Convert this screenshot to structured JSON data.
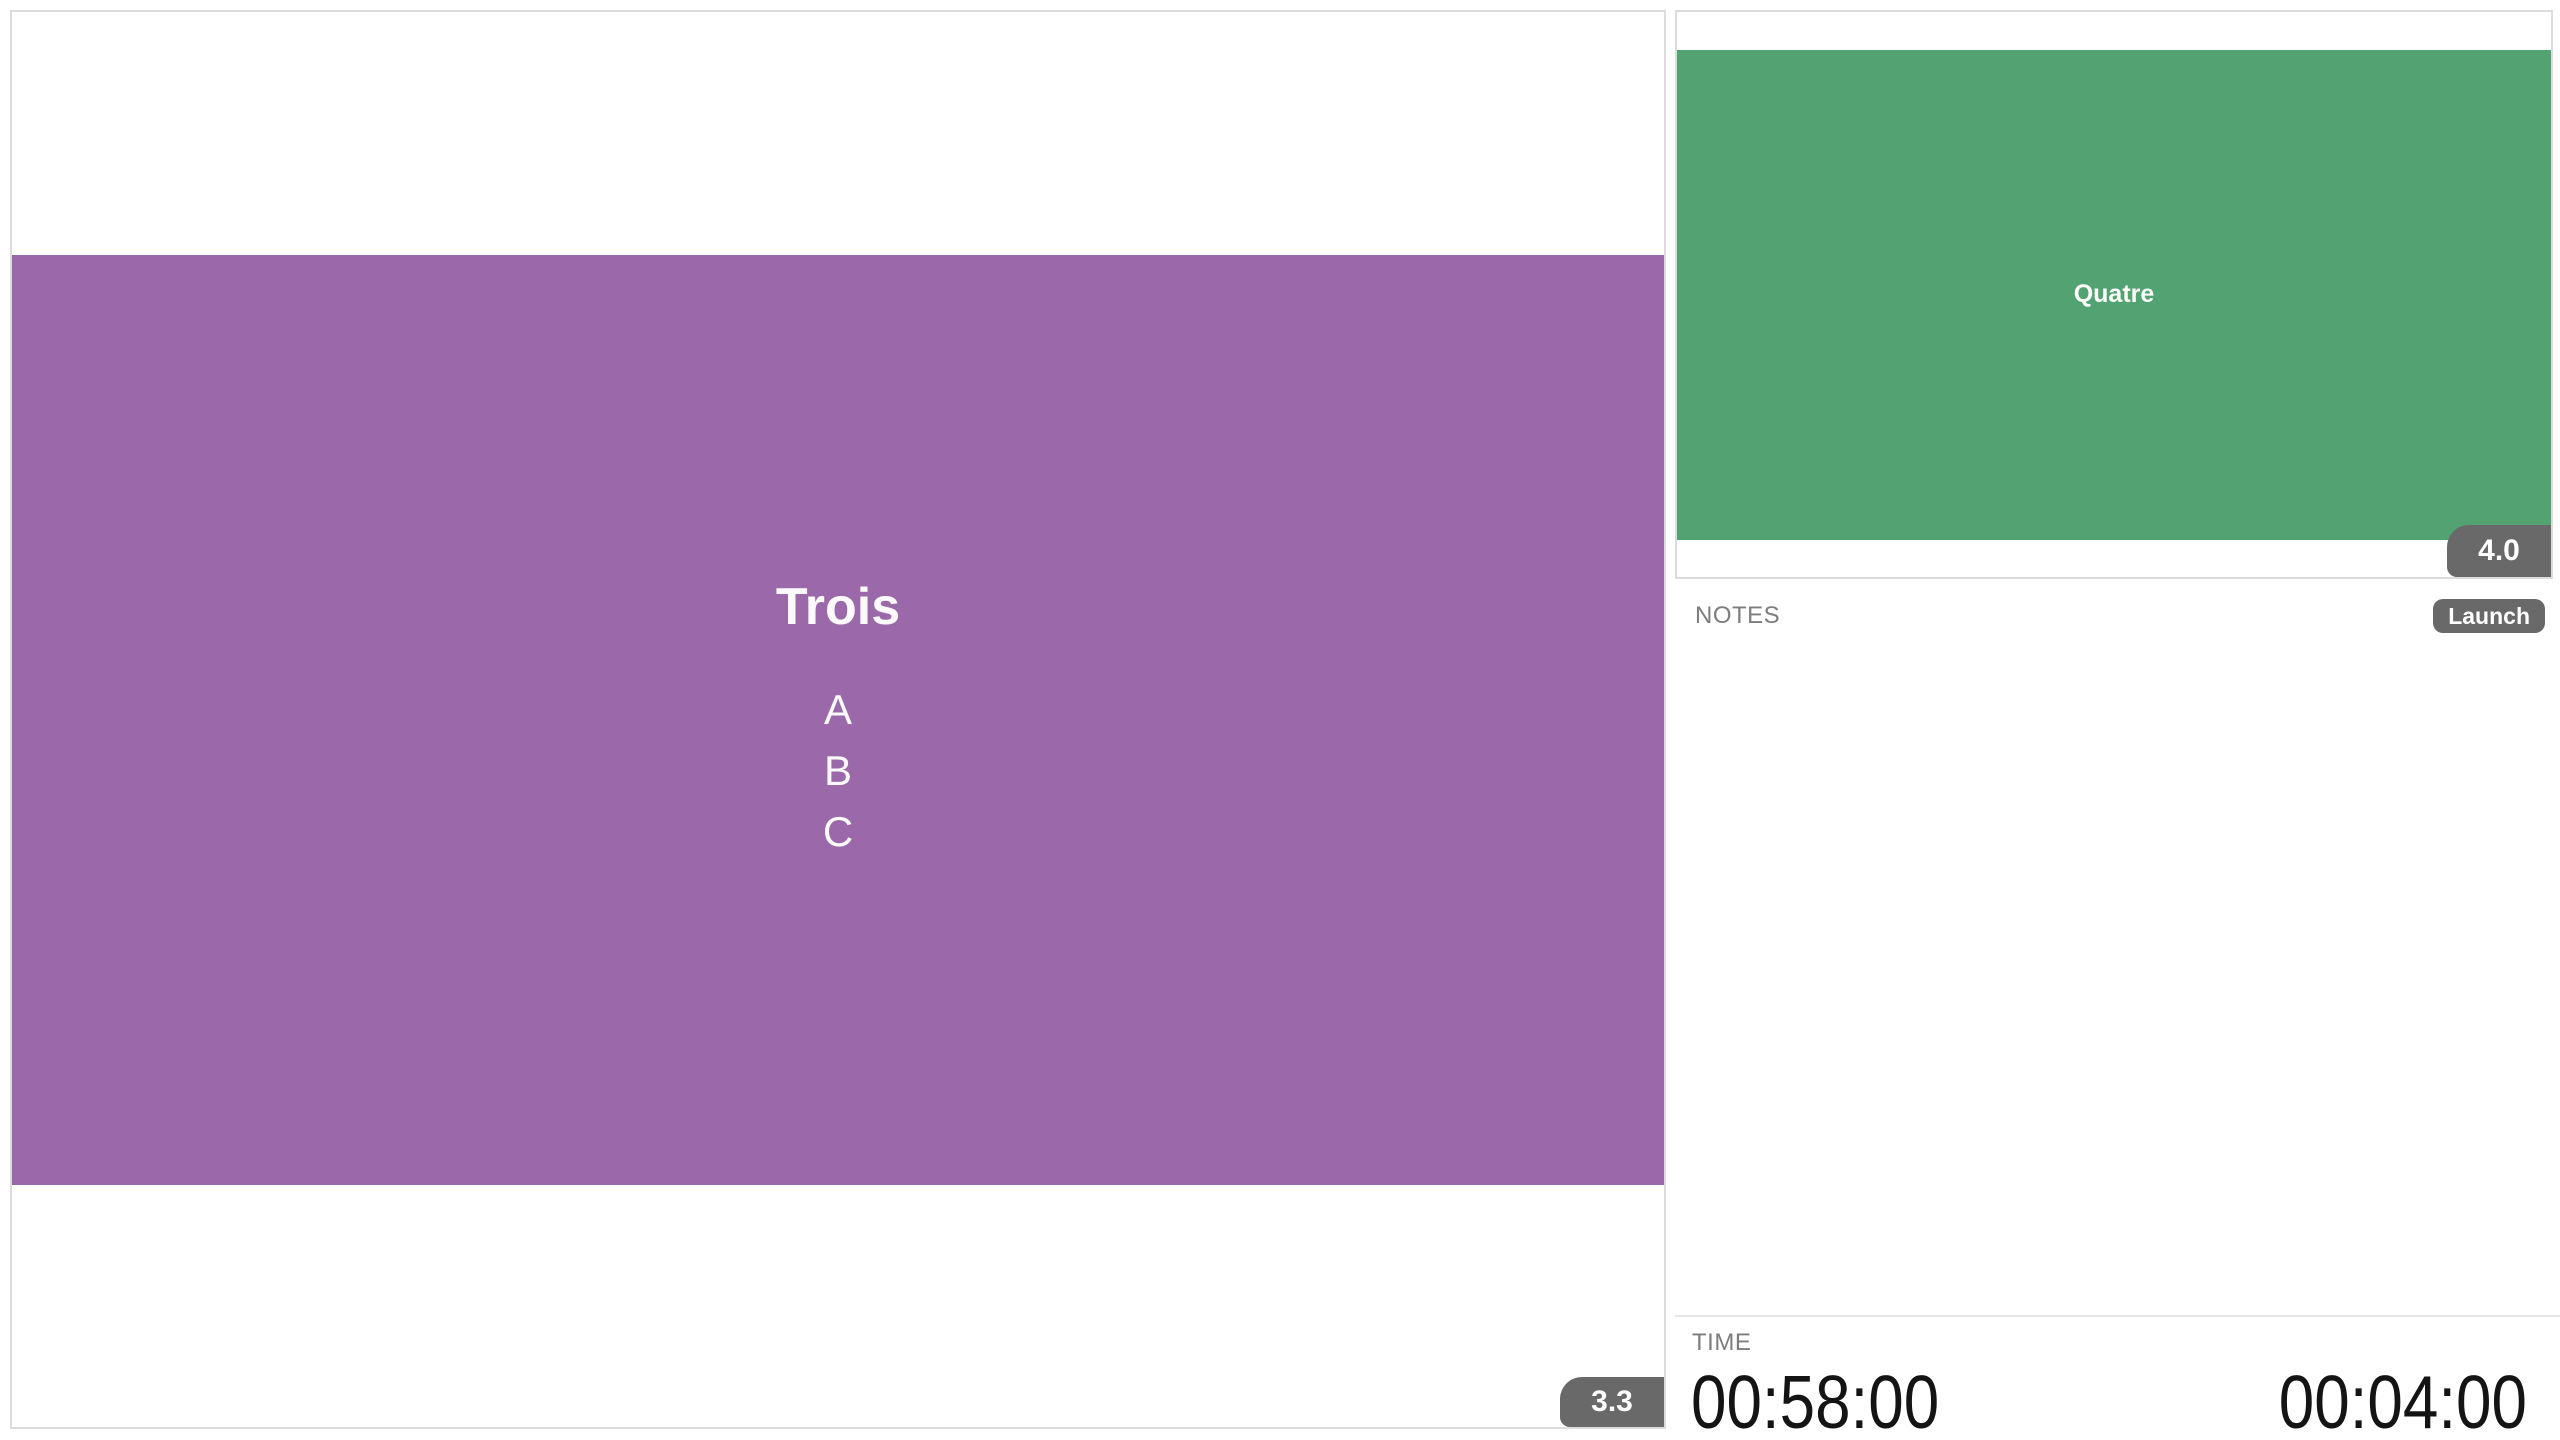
{
  "slides": {
    "current": {
      "title": "Trois",
      "items": [
        "A",
        "B",
        "C"
      ],
      "badge": "3.3",
      "bg": "#9b69a9"
    },
    "next": {
      "title": "Quatre",
      "badge": "4.0",
      "bg": "#52a371"
    }
  },
  "notes": {
    "label": "NOTES",
    "launch_label": "Launch",
    "content": ""
  },
  "time": {
    "label": "TIME",
    "left_value": "00:58:00",
    "right_value": "00:04:00"
  },
  "colors": {
    "badge_bg": "#696969",
    "badge_text": "#ffffff",
    "panel_border": "#dcdcdc",
    "divider": "#e7e7e7",
    "label_gray": "#7d7d7d",
    "timer_text": "#141414"
  }
}
